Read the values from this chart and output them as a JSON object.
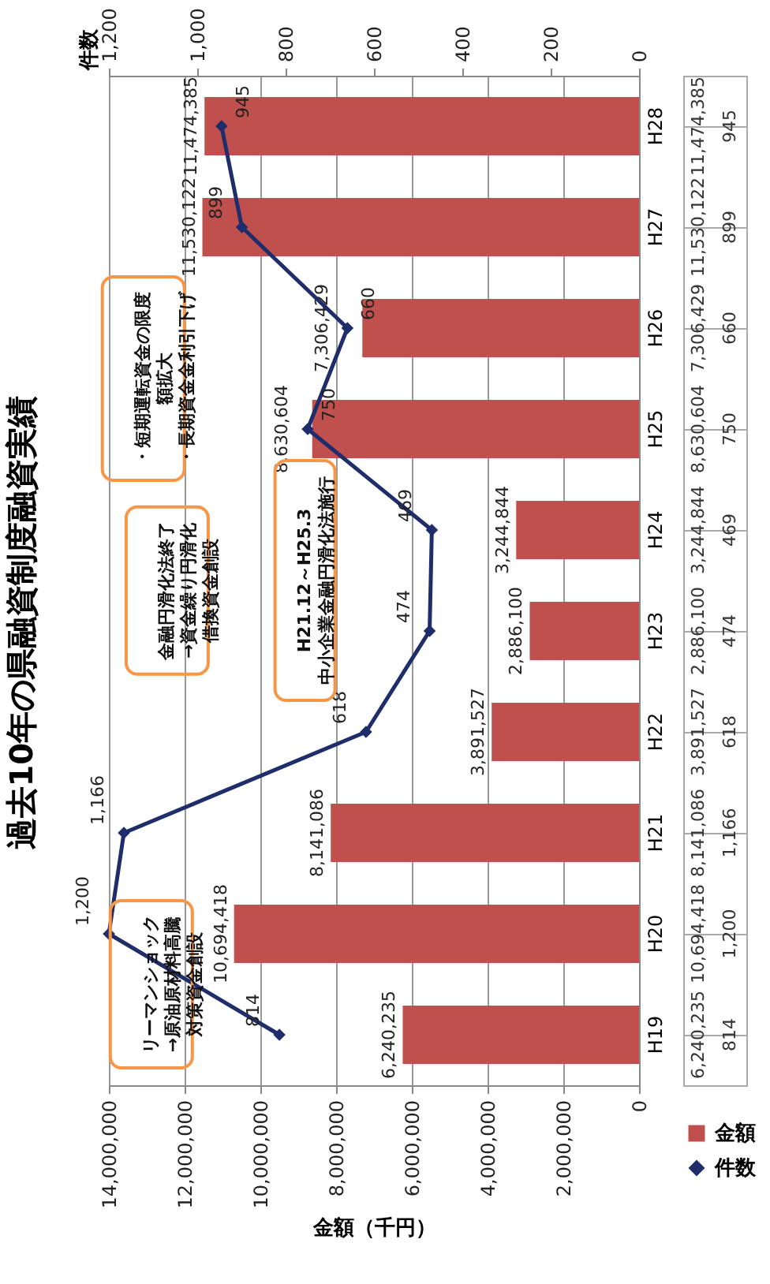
{
  "chart_data": {
    "type": "bar",
    "orientation": "horizontal",
    "title": "過去10年の県融資制度融資実績",
    "xlabel": "金額（千円）",
    "x2label": "件数",
    "categories": [
      "H28",
      "H27",
      "H26",
      "H25",
      "H24",
      "H23",
      "H22",
      "H21",
      "H20",
      "H19"
    ],
    "series": [
      {
        "name": "金額",
        "type": "bar",
        "color": "#c0504d",
        "values": [
          11474385,
          11530122,
          7306429,
          8630604,
          3244844,
          2886100,
          3891527,
          8141086,
          10694418,
          6240235
        ],
        "value_labels": [
          "11,474,385",
          "11,530,122",
          "7,306,429",
          "8,630,604",
          "3,244,844",
          "2,886,100",
          "3,891,527",
          "8,141,086",
          "10,694,418",
          "6,240,235"
        ]
      },
      {
        "name": "件数",
        "type": "line",
        "axis": "x2",
        "color": "#1f2d6b",
        "values": [
          945,
          899,
          660,
          750,
          469,
          474,
          618,
          1166,
          1200,
          814
        ],
        "value_labels": [
          "945",
          "899",
          "660",
          "750",
          "469",
          "474",
          "618",
          "1,166",
          "1,200",
          "814"
        ]
      }
    ],
    "xlim": [
      14000000,
      0
    ],
    "xticks": [
      {
        "value": 14000000,
        "label": "14,000,000"
      },
      {
        "value": 12000000,
        "label": "12,000,000"
      },
      {
        "value": 10000000,
        "label": "10,000,000"
      },
      {
        "value": 8000000,
        "label": "8,000,000"
      },
      {
        "value": 6000000,
        "label": "6,000,000"
      },
      {
        "value": 4000000,
        "label": "4,000,000"
      },
      {
        "value": 2000000,
        "label": "2,000,000"
      },
      0
    ],
    "x2lim": [
      1200,
      0
    ],
    "x2ticks": [
      {
        "value": 1200,
        "label": "1,200"
      },
      {
        "value": 1000,
        "label": "1,000"
      },
      800,
      600,
      400,
      200,
      0
    ],
    "grid": "x",
    "legend": "bottom right",
    "marker": "diamond",
    "line_style": "solid",
    "annotations": [
      "リーマンショック→原油原材料高騰対策資金創設",
      "金融円滑化法終了→資金繰り円滑化借換資金創設",
      "H21.12～H25.3中小企業金融円滑化法施行",
      "・短期運転資金の限度額拡大・長期資金金利引下げ"
    ]
  }
}
